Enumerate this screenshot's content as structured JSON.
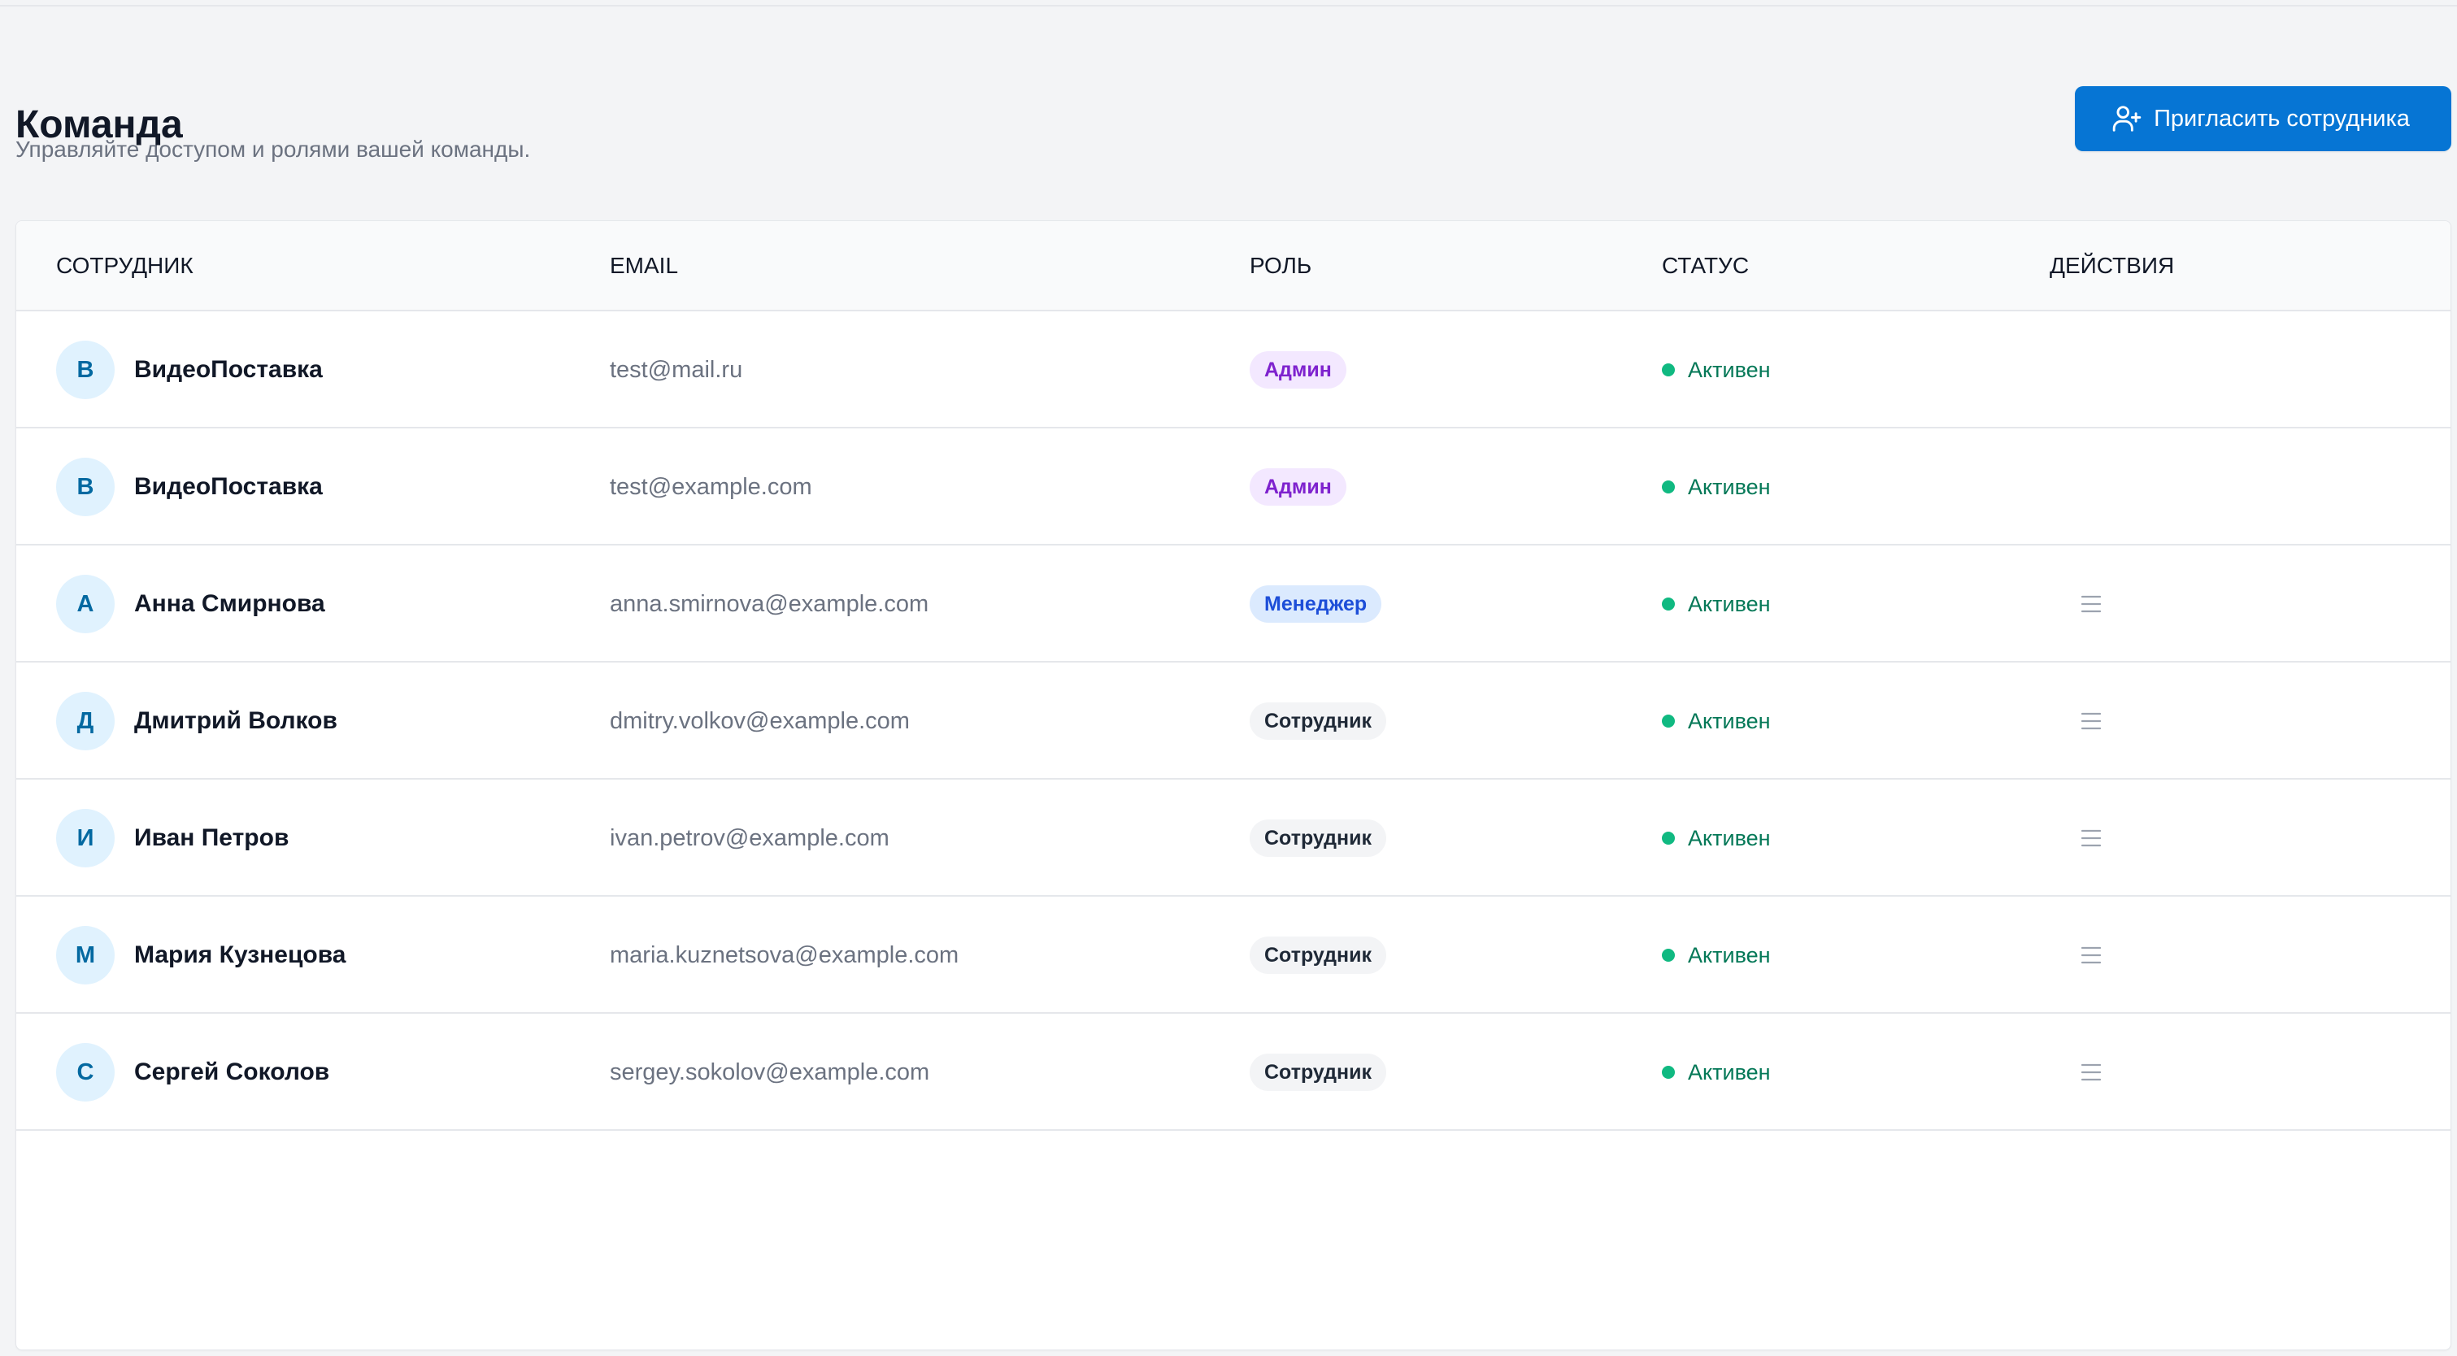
{
  "page": {
    "title": "Команда",
    "subtitle": "Управляйте доступом и ролями вашей команды.",
    "invite_button": {
      "label": "Пригласить сотрудника",
      "icon": "user-plus-icon",
      "color": "#0675d4"
    }
  },
  "table": {
    "headers": {
      "employee": "СОТРУДНИК",
      "email": "EMAIL",
      "role": "РОЛЬ",
      "status": "СТАТУС",
      "actions": "ДЕЙСТВИЯ"
    },
    "rows": [
      {
        "avatar": "В",
        "name": "ВидеоПоставка",
        "email": "test@mail.ru",
        "role": "Админ",
        "role_type": "admin",
        "status": "Активен",
        "actions_visible": false
      },
      {
        "avatar": "В",
        "name": "ВидеоПоставка",
        "email": "test@example.com",
        "role": "Админ",
        "role_type": "admin",
        "status": "Активен",
        "actions_visible": false
      },
      {
        "avatar": "А",
        "name": "Анна Смирнова",
        "email": "anna.smirnova@example.com",
        "role": "Менеджер",
        "role_type": "manager",
        "status": "Активен",
        "actions_visible": true,
        "actions_icon": "menu-lines-icon"
      },
      {
        "avatar": "Д",
        "name": "Дмитрий Волков",
        "email": "dmitry.volkov@example.com",
        "role": "Сотрудник",
        "role_type": "employee",
        "status": "Активен",
        "actions_visible": true,
        "actions_icon": "menu-lines-icon"
      },
      {
        "avatar": "И",
        "name": "Иван Петров",
        "email": "ivan.petrov@example.com",
        "role": "Сотрудник",
        "role_type": "employee",
        "status": "Активен",
        "actions_visible": true,
        "actions_icon": "menu-lines-icon"
      },
      {
        "avatar": "М",
        "name": "Мария Кузнецова",
        "email": "maria.kuznetsova@example.com",
        "role": "Сотрудник",
        "role_type": "employee",
        "status": "Активен",
        "actions_visible": true,
        "actions_icon": "menu-lines-icon"
      },
      {
        "avatar": "С",
        "name": "Сергей Соколов",
        "email": "sergey.sokolov@example.com",
        "role": "Сотрудник",
        "role_type": "employee",
        "status": "Активен",
        "actions_visible": true,
        "actions_icon": "menu-lines-icon"
      }
    ]
  },
  "colors": {
    "page_background": "#f3f4f6",
    "card_background": "#ffffff",
    "border": "#e5e7eb",
    "status_active": "#10b981",
    "avatar_background": "#e0f2fe",
    "avatar_text": "#0369a1"
  }
}
